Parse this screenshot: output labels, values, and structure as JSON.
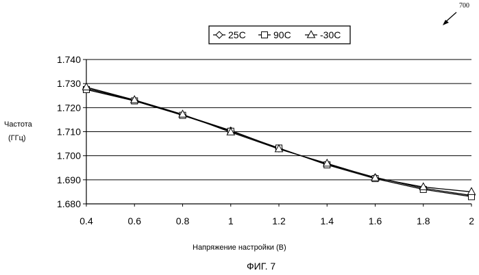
{
  "figure_ref": "700",
  "figure_caption": "ФИГ. 7",
  "chart_data": {
    "type": "line",
    "title": "",
    "xlabel": "Напряжение настройки (В)",
    "ylabel": "Частота (ГГц)",
    "ylabel_lines": [
      "Частота",
      "(ГГц)"
    ],
    "x": [
      0.4,
      0.6,
      0.8,
      1.0,
      1.2,
      1.4,
      1.6,
      1.8,
      2.0
    ],
    "x_tick_labels": [
      "0.4",
      "0.6",
      "0.8",
      "1",
      "1.2",
      "1.4",
      "1.6",
      "1.8",
      "2"
    ],
    "y_tick_labels": [
      "1.740",
      "1.730",
      "1.720",
      "1.710",
      "1.700",
      "1.690",
      "1.680"
    ],
    "xlim": [
      0.4,
      2.0
    ],
    "ylim": [
      1.68,
      1.74
    ],
    "grid": "horizontal",
    "legend_position": "top-center",
    "series": [
      {
        "name": "25C",
        "marker": "diamond",
        "values": [
          1.728,
          1.723,
          1.717,
          1.7105,
          1.703,
          1.6965,
          1.691,
          1.6865,
          1.6835
        ]
      },
      {
        "name": "90C",
        "marker": "square",
        "values": [
          1.7275,
          1.7228,
          1.7168,
          1.7102,
          1.7032,
          1.6962,
          1.6905,
          1.686,
          1.683
        ]
      },
      {
        "name": "-30C",
        "marker": "triangle",
        "values": [
          1.7285,
          1.7232,
          1.7172,
          1.7098,
          1.7028,
          1.6968,
          1.6908,
          1.687,
          1.685
        ]
      }
    ]
  }
}
